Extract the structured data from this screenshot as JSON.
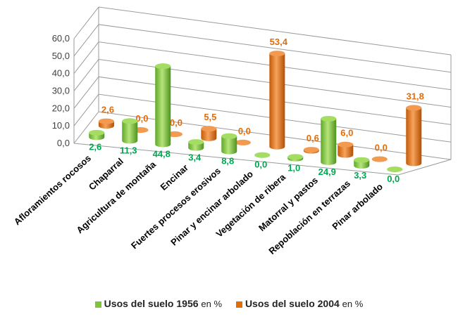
{
  "chart_data": {
    "type": "bar",
    "style": "3d-cylinder",
    "categories": [
      "Afloramientos rocosos",
      "Chaparral",
      "Agricultura de montaña",
      "Encinar",
      "Fuertes procesos erosivos",
      "Pinar y encinar arbolado",
      "Vegetación de ribera",
      "Matorral y pastos",
      "Repoblación en terrazas",
      "Pinar arbolado"
    ],
    "series": [
      {
        "name": "Usos del suelo 1956",
        "unit": "en %",
        "color": "#7ec639",
        "label_color": "#00a651",
        "values": [
          2.6,
          11.3,
          44.8,
          3.4,
          8.8,
          0.0,
          1.0,
          24.9,
          3.3,
          0.0
        ],
        "labels": [
          "2,6",
          "11,3",
          "44,8",
          "3,4",
          "8,8",
          "0,0",
          "1,0",
          "24,9",
          "3,3",
          "0,0"
        ]
      },
      {
        "name": "Usos del suelo 2004",
        "unit": "en %",
        "color": "#e36c0a",
        "label_color": "#e36c0a",
        "values": [
          2.6,
          0.0,
          0.0,
          5.5,
          0.0,
          53.4,
          0.6,
          6.0,
          0.0,
          31.8
        ],
        "labels": [
          "2,6",
          "0,0",
          "0,0",
          "5,5",
          "0,0",
          "53,4",
          "0,6",
          "6,0",
          "0,0",
          "31,8"
        ]
      }
    ],
    "y_ticks": [
      "0,0",
      "10,0",
      "20,0",
      "30,0",
      "40,0",
      "50,0",
      "60,0"
    ],
    "ylim": [
      0,
      60
    ],
    "grid": true,
    "legend_position": "bottom"
  }
}
